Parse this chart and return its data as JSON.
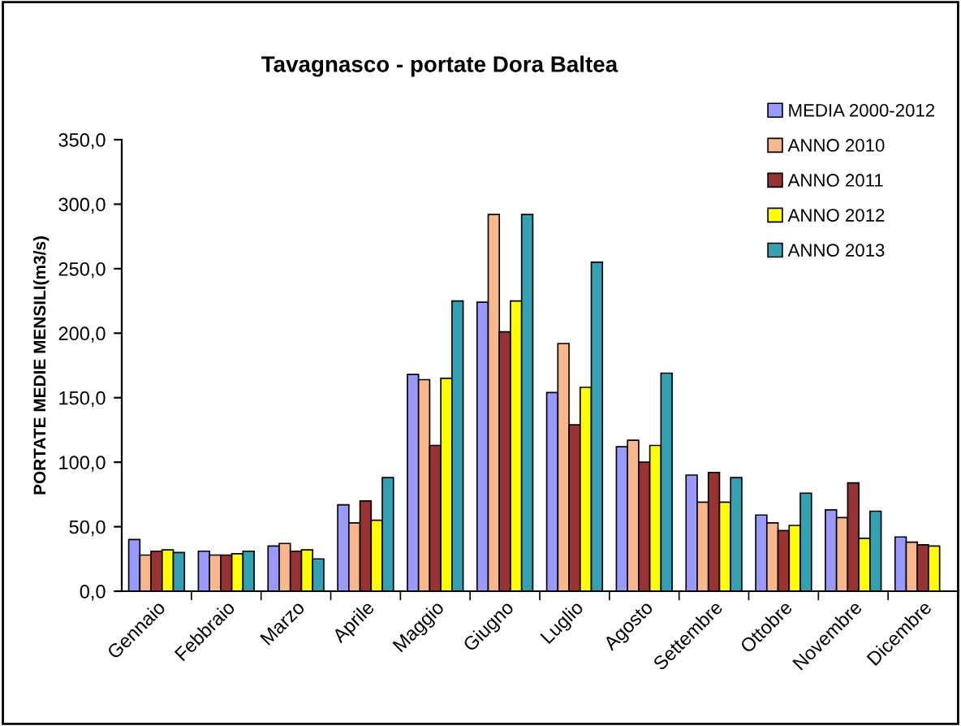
{
  "chart_data": {
    "type": "bar",
    "title": "Tavagnasco - portate Dora Baltea",
    "ylabel": "PORTATE MEDIE MENSILI(m3/s)",
    "categories": [
      "Gennaio",
      "Febbraio",
      "Marzo",
      "Aprile",
      "Maggio",
      "Giugno",
      "Luglio",
      "Agosto",
      "Settembre",
      "Ottobre",
      "Novembre",
      "Dicembre"
    ],
    "series": [
      {
        "name": "MEDIA 2000-2012",
        "color": "#9999ff",
        "values": [
          40,
          31,
          35,
          67,
          168,
          224,
          154,
          112,
          90,
          59,
          63,
          42
        ]
      },
      {
        "name": "ANNO 2010",
        "color": "#f8b88b",
        "values": [
          28,
          28,
          37,
          53,
          164,
          292,
          192,
          117,
          69,
          53,
          57,
          38
        ]
      },
      {
        "name": "ANNO 2011",
        "color": "#993333",
        "values": [
          31,
          28,
          31,
          70,
          113,
          201,
          129,
          100,
          92,
          47,
          84,
          36
        ]
      },
      {
        "name": "ANNO 2012",
        "color": "#ffff00",
        "values": [
          32,
          29,
          32,
          55,
          165,
          225,
          158,
          113,
          69,
          51,
          41,
          35
        ]
      },
      {
        "name": "ANNO 2013",
        "color": "#33a0b4",
        "values": [
          30,
          31,
          25,
          88,
          225,
          292,
          255,
          169,
          88,
          76,
          62,
          null
        ]
      }
    ],
    "ylim": [
      0,
      350
    ],
    "yticks": [
      {
        "value": 0,
        "label": "0,0"
      },
      {
        "value": 50,
        "label": "50,0"
      },
      {
        "value": 100,
        "label": "100,0"
      },
      {
        "value": 150,
        "label": "150,0"
      },
      {
        "value": 200,
        "label": "200,0"
      },
      {
        "value": 250,
        "label": "250,0"
      },
      {
        "value": 300,
        "label": "300,0"
      },
      {
        "value": 350,
        "label": "350,0"
      }
    ],
    "legend": "top right",
    "grid": false
  }
}
